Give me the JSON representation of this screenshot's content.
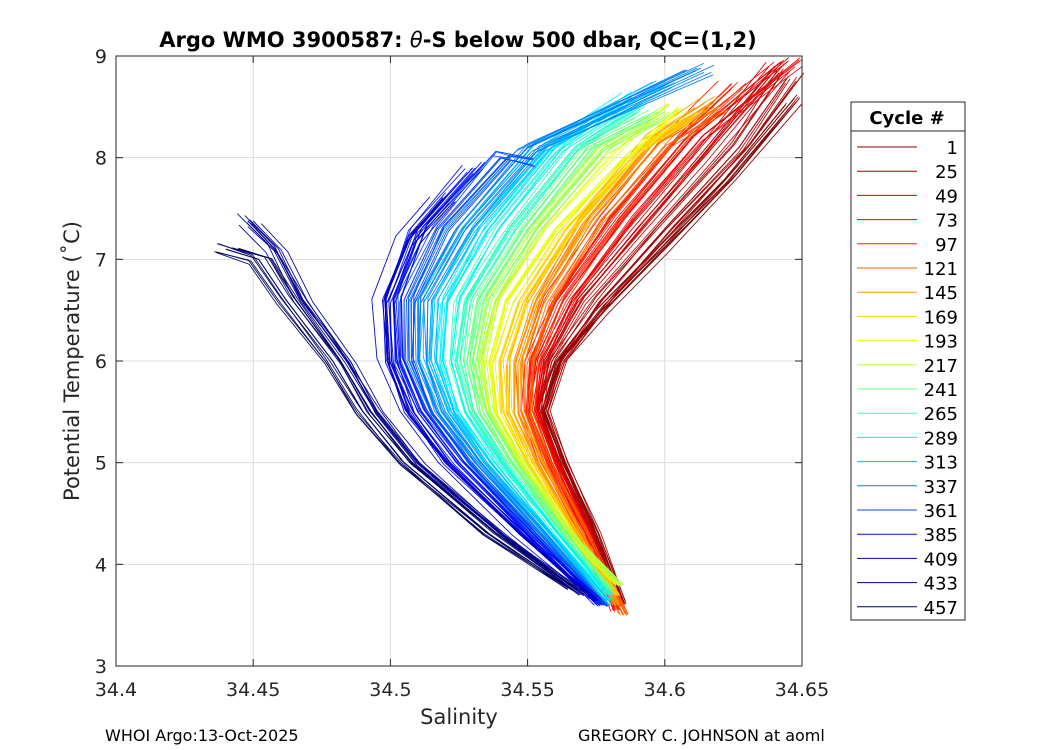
{
  "chart_data": {
    "type": "line",
    "title": "Argo WMO 3900587: θ-S below 500 dbar,  QC=(1,2)",
    "title_parts": {
      "prefix": "Argo WMO 3900587: ",
      "theta": "θ",
      "suffix": "-S below 500 dbar,  QC=(1,2)"
    },
    "xlabel": "Salinity",
    "ylabel": "Potential Temperature (˚C)",
    "xlim": [
      34.4,
      34.65
    ],
    "ylim": [
      3,
      9
    ],
    "xticks": [
      34.4,
      34.45,
      34.5,
      34.55,
      34.6,
      34.65
    ],
    "xtick_labels": [
      "34.4",
      "34.45",
      "34.5",
      "34.55",
      "34.6",
      "34.65"
    ],
    "yticks": [
      3,
      4,
      5,
      6,
      7,
      8,
      9
    ],
    "ytick_labels": [
      "3",
      "4",
      "5",
      "6",
      "7",
      "8",
      "9"
    ],
    "grid": true,
    "legend_title": "Cycle #",
    "legend_position": "outside-right",
    "series": [
      {
        "name": "1",
        "color": "#800000",
        "values": [
          [
            34.585,
            3.62
          ],
          [
            34.575,
            4.3
          ],
          [
            34.563,
            5.0
          ],
          [
            34.556,
            5.5
          ],
          [
            34.562,
            6.0
          ],
          [
            34.578,
            6.5
          ],
          [
            34.6,
            7.1
          ],
          [
            34.625,
            7.8
          ],
          [
            34.648,
            8.55
          ]
        ]
      },
      {
        "name": "25",
        "color": "#a50000",
        "values": [
          [
            34.584,
            3.6
          ],
          [
            34.574,
            4.3
          ],
          [
            34.562,
            5.0
          ],
          [
            34.555,
            5.5
          ],
          [
            34.561,
            6.0
          ],
          [
            34.577,
            6.6
          ],
          [
            34.6,
            7.3
          ],
          [
            34.627,
            8.1
          ],
          [
            34.645,
            8.8
          ]
        ]
      },
      {
        "name": "49",
        "color": "#c80000",
        "values": [
          [
            34.583,
            3.58
          ],
          [
            34.572,
            4.3
          ],
          [
            34.56,
            5.0
          ],
          [
            34.553,
            5.5
          ],
          [
            34.556,
            6.0
          ],
          [
            34.568,
            6.6
          ],
          [
            34.59,
            7.3
          ],
          [
            34.612,
            8.0
          ],
          [
            34.64,
            8.9
          ]
        ]
      },
      {
        "name": "73",
        "color": "#ee0000",
        "values": [
          [
            34.582,
            3.55
          ],
          [
            34.571,
            4.3
          ],
          [
            34.558,
            5.0
          ],
          [
            34.551,
            5.5
          ],
          [
            34.553,
            6.0
          ],
          [
            34.563,
            6.6
          ],
          [
            34.585,
            7.4
          ],
          [
            34.61,
            8.2
          ],
          [
            34.645,
            8.95
          ]
        ]
      },
      {
        "name": "97",
        "color": "#ff2200",
        "values": [
          [
            34.583,
            3.6
          ],
          [
            34.57,
            4.3
          ],
          [
            34.557,
            5.0
          ],
          [
            34.55,
            5.5
          ],
          [
            34.551,
            6.0
          ],
          [
            34.56,
            6.6
          ],
          [
            34.58,
            7.4
          ],
          [
            34.605,
            8.2
          ],
          [
            34.625,
            8.7
          ]
        ]
      },
      {
        "name": "121",
        "color": "#ff6000",
        "values": [
          [
            34.585,
            3.5
          ],
          [
            34.57,
            4.3
          ],
          [
            34.556,
            5.0
          ],
          [
            34.549,
            5.5
          ],
          [
            34.549,
            6.0
          ],
          [
            34.556,
            6.6
          ],
          [
            34.574,
            7.4
          ],
          [
            34.598,
            8.15
          ],
          [
            34.618,
            8.5
          ]
        ]
      },
      {
        "name": "145",
        "color": "#ff9a00",
        "values": [
          [
            34.582,
            3.6
          ],
          [
            34.568,
            4.3
          ],
          [
            34.553,
            5.0
          ],
          [
            34.545,
            5.5
          ],
          [
            34.545,
            6.0
          ],
          [
            34.552,
            6.6
          ],
          [
            34.57,
            7.4
          ],
          [
            34.595,
            8.2
          ],
          [
            34.615,
            8.55
          ]
        ]
      },
      {
        "name": "169",
        "color": "#ffd200",
        "values": [
          [
            34.582,
            3.7
          ],
          [
            34.566,
            4.3
          ],
          [
            34.55,
            5.0
          ],
          [
            34.541,
            5.5
          ],
          [
            34.54,
            6.0
          ],
          [
            34.547,
            6.6
          ],
          [
            34.564,
            7.3
          ],
          [
            34.59,
            8.1
          ],
          [
            34.608,
            8.4
          ]
        ]
      },
      {
        "name": "193",
        "color": "#e8ff10",
        "values": [
          [
            34.583,
            3.8
          ],
          [
            34.565,
            4.3
          ],
          [
            34.548,
            5.0
          ],
          [
            34.538,
            5.5
          ],
          [
            34.536,
            6.0
          ],
          [
            34.542,
            6.6
          ],
          [
            34.56,
            7.3
          ],
          [
            34.585,
            8.0
          ],
          [
            34.605,
            8.5
          ]
        ]
      },
      {
        "name": "217",
        "color": "#b0ff48",
        "values": [
          [
            34.584,
            3.8
          ],
          [
            34.565,
            4.3
          ],
          [
            34.546,
            5.0
          ],
          [
            34.535,
            5.5
          ],
          [
            34.532,
            6.0
          ],
          [
            34.537,
            6.6
          ],
          [
            34.553,
            7.3
          ],
          [
            34.578,
            8.1
          ],
          [
            34.6,
            8.45
          ]
        ]
      },
      {
        "name": "241",
        "color": "#70ff88",
        "values": [
          [
            34.58,
            3.75
          ],
          [
            34.563,
            4.3
          ],
          [
            34.544,
            5.0
          ],
          [
            34.532,
            5.5
          ],
          [
            34.528,
            6.0
          ],
          [
            34.532,
            6.6
          ],
          [
            34.548,
            7.3
          ],
          [
            34.572,
            8.1
          ],
          [
            34.594,
            8.4
          ]
        ]
      },
      {
        "name": "265",
        "color": "#30ffc8",
        "values": [
          [
            34.58,
            3.7
          ],
          [
            34.561,
            4.3
          ],
          [
            34.541,
            5.0
          ],
          [
            34.529,
            5.5
          ],
          [
            34.524,
            6.0
          ],
          [
            34.527,
            6.6
          ],
          [
            34.543,
            7.3
          ],
          [
            34.567,
            8.1
          ],
          [
            34.59,
            8.5
          ]
        ]
      },
      {
        "name": "289",
        "color": "#00ecf8",
        "values": [
          [
            34.58,
            3.65
          ],
          [
            34.559,
            4.3
          ],
          [
            34.538,
            5.0
          ],
          [
            34.525,
            5.5
          ],
          [
            34.519,
            6.0
          ],
          [
            34.521,
            6.6
          ],
          [
            34.536,
            7.3
          ],
          [
            34.56,
            8.1
          ],
          [
            34.588,
            8.6
          ]
        ]
      },
      {
        "name": "313",
        "color": "#00b8ff",
        "values": [
          [
            34.579,
            3.6
          ],
          [
            34.557,
            4.3
          ],
          [
            34.534,
            5.0
          ],
          [
            34.521,
            5.5
          ],
          [
            34.514,
            6.0
          ],
          [
            34.515,
            6.6
          ],
          [
            34.53,
            7.3
          ],
          [
            34.556,
            8.1
          ],
          [
            34.6,
            8.7
          ]
        ]
      },
      {
        "name": "337",
        "color": "#0080ff",
        "values": [
          [
            34.578,
            3.6
          ],
          [
            34.555,
            4.3
          ],
          [
            34.531,
            5.0
          ],
          [
            34.517,
            5.5
          ],
          [
            34.51,
            6.0
          ],
          [
            34.51,
            6.6
          ],
          [
            34.524,
            7.3
          ],
          [
            34.55,
            8.1
          ],
          [
            34.613,
            8.88
          ]
        ]
      },
      {
        "name": "361",
        "color": "#0048ff",
        "values": [
          [
            34.577,
            3.6
          ],
          [
            34.552,
            4.3
          ],
          [
            34.527,
            5.0
          ],
          [
            34.513,
            5.5
          ],
          [
            34.505,
            6.0
          ],
          [
            34.505,
            6.6
          ],
          [
            34.517,
            7.3
          ],
          [
            34.54,
            8.0
          ],
          [
            34.548,
            7.95
          ]
        ]
      },
      {
        "name": "385",
        "color": "#0010ff",
        "values": [
          [
            34.576,
            3.6
          ],
          [
            34.55,
            4.3
          ],
          [
            34.524,
            5.0
          ],
          [
            34.51,
            5.5
          ],
          [
            34.502,
            6.0
          ],
          [
            34.501,
            6.6
          ],
          [
            34.51,
            7.3
          ],
          [
            34.53,
            7.9
          ]
        ]
      },
      {
        "name": "409",
        "color": "#0000c8",
        "values": [
          [
            34.575,
            3.65
          ],
          [
            34.547,
            4.3
          ],
          [
            34.52,
            5.0
          ],
          [
            34.506,
            5.5
          ],
          [
            34.499,
            6.0
          ],
          [
            34.498,
            6.6
          ],
          [
            34.507,
            7.2
          ],
          [
            34.52,
            7.6
          ]
        ]
      },
      {
        "name": "433",
        "color": "#000090",
        "values": [
          [
            34.57,
            3.7
          ],
          [
            34.54,
            4.3
          ],
          [
            34.51,
            5.0
          ],
          [
            34.495,
            5.5
          ],
          [
            34.484,
            6.0
          ],
          [
            34.468,
            6.6
          ],
          [
            34.458,
            7.1
          ],
          [
            34.448,
            7.38
          ]
        ]
      },
      {
        "name": "457",
        "color": "#000060",
        "values": [
          [
            34.566,
            3.75
          ],
          [
            34.536,
            4.3
          ],
          [
            34.505,
            5.0
          ],
          [
            34.49,
            5.5
          ],
          [
            34.479,
            6.0
          ],
          [
            34.462,
            6.6
          ],
          [
            34.452,
            7.0
          ],
          [
            34.44,
            7.1
          ]
        ]
      }
    ]
  },
  "footer": {
    "left": "WHOI Argo:13-Oct-2025",
    "right": "GREGORY C. JOHNSON at aoml"
  }
}
